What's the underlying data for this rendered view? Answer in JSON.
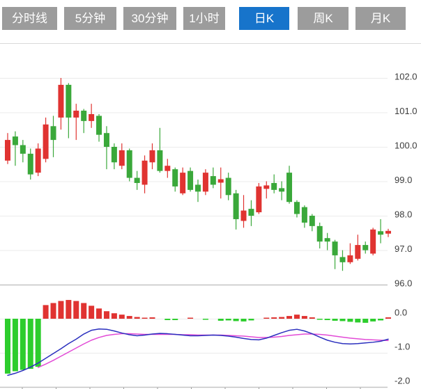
{
  "toolbar": {
    "tabs": [
      {
        "label": "分时线",
        "active": false
      },
      {
        "label": "5分钟",
        "active": false
      },
      {
        "label": "30分钟",
        "active": false
      },
      {
        "label": "1小时",
        "active": false
      },
      {
        "label": "日K",
        "active": true
      },
      {
        "label": "周K",
        "active": false
      },
      {
        "label": "月K",
        "active": false
      }
    ]
  },
  "colors": {
    "tab_inactive": "#9c9c9c",
    "tab_active": "#1774cb",
    "candle_up": "#e03331",
    "candle_down": "#3aa83a",
    "macd_up": "#e03331",
    "macd_down": "#2dcd2d",
    "dif_line": "#2a2fbe",
    "dea_line": "#e24ad6",
    "grid": "#ebebeb",
    "axis": "#c4c4c4",
    "tick": "#999999",
    "label": "#3c3c3c",
    "separator": "#d9d9d9"
  },
  "chart_data": {
    "type": "candlestick",
    "title": "",
    "legend": [],
    "panes": [
      {
        "name": "price",
        "y_tick_labels": [
          "102.0",
          "101.0",
          "100.0",
          "99.0",
          "98.0",
          "97.0",
          "96.0"
        ],
        "ylim": [
          95.9,
          102.1
        ],
        "grid": true
      },
      {
        "name": "macd",
        "y_tick_labels": [
          "0.0",
          "-1.0",
          "-2.0"
        ],
        "ylim": [
          -2.05,
          0.6
        ],
        "grid": true
      }
    ],
    "x_axis": {
      "tick_count": 11,
      "labels_visible": false
    },
    "candles_format": [
      "open",
      "high",
      "low",
      "close"
    ],
    "candles": [
      [
        99.6,
        100.4,
        99.5,
        100.2
      ],
      [
        100.3,
        100.45,
        99.45,
        100.05
      ],
      [
        100.05,
        100.2,
        99.55,
        99.8
      ],
      [
        99.8,
        99.95,
        99.05,
        99.2
      ],
      [
        99.25,
        100.1,
        99.15,
        99.95
      ],
      [
        99.65,
        100.85,
        99.55,
        100.65
      ],
      [
        100.6,
        100.9,
        99.7,
        100.2
      ],
      [
        100.85,
        102.0,
        100.5,
        101.8
      ],
      [
        101.8,
        101.85,
        100.25,
        100.85
      ],
      [
        100.85,
        101.25,
        100.2,
        101.05
      ],
      [
        101.05,
        101.1,
        100.4,
        100.75
      ],
      [
        100.75,
        101.25,
        100.55,
        100.95
      ],
      [
        100.9,
        100.95,
        100.15,
        100.35
      ],
      [
        100.4,
        100.6,
        99.35,
        100.0
      ],
      [
        100.0,
        100.1,
        99.35,
        99.55
      ],
      [
        99.45,
        100.1,
        99.35,
        99.9
      ],
      [
        99.9,
        99.95,
        99.0,
        99.1
      ],
      [
        99.1,
        99.3,
        98.75,
        98.95
      ],
      [
        98.9,
        99.75,
        98.65,
        99.6
      ],
      [
        99.55,
        100.1,
        99.35,
        99.9
      ],
      [
        99.9,
        100.55,
        99.25,
        99.3
      ],
      [
        99.3,
        99.65,
        99.1,
        99.45
      ],
      [
        99.35,
        99.4,
        98.7,
        98.85
      ],
      [
        98.65,
        99.4,
        98.6,
        99.25
      ],
      [
        99.3,
        99.4,
        98.7,
        98.75
      ],
      [
        98.9,
        99.05,
        98.4,
        98.7
      ],
      [
        98.7,
        99.35,
        98.6,
        99.25
      ],
      [
        99.15,
        99.4,
        98.8,
        98.9
      ],
      [
        98.96,
        99.4,
        98.5,
        99.06
      ],
      [
        99.1,
        99.25,
        98.45,
        98.6
      ],
      [
        98.65,
        98.75,
        97.6,
        97.9
      ],
      [
        97.85,
        98.6,
        97.65,
        98.15
      ],
      [
        98.2,
        98.45,
        97.7,
        98.0
      ],
      [
        98.1,
        98.95,
        98.05,
        98.85
      ],
      [
        98.78,
        99.0,
        98.5,
        98.88
      ],
      [
        98.95,
        99.2,
        98.65,
        98.75
      ],
      [
        98.8,
        99.0,
        98.45,
        98.7
      ],
      [
        99.25,
        99.45,
        98.35,
        98.4
      ],
      [
        98.4,
        98.45,
        97.95,
        98.05
      ],
      [
        98.25,
        98.3,
        97.65,
        97.8
      ],
      [
        98.0,
        98.05,
        97.55,
        97.7
      ],
      [
        97.7,
        97.8,
        97.05,
        97.25
      ],
      [
        97.35,
        97.5,
        97.0,
        97.25
      ],
      [
        97.25,
        97.3,
        96.45,
        96.85
      ],
      [
        96.8,
        97.0,
        96.4,
        96.65
      ],
      [
        96.65,
        97.2,
        96.6,
        96.85
      ],
      [
        96.75,
        97.45,
        96.7,
        97.15
      ],
      [
        97.15,
        97.25,
        96.9,
        97.0
      ],
      [
        96.9,
        97.65,
        96.85,
        97.6
      ],
      [
        97.55,
        97.9,
        97.2,
        97.45
      ],
      [
        97.48,
        97.62,
        97.38,
        97.56
      ]
    ],
    "macd": {
      "hist": [
        -1.61,
        -1.54,
        -1.5,
        -1.47,
        -1.41,
        0.4,
        0.46,
        0.52,
        0.55,
        0.52,
        0.46,
        0.38,
        0.3,
        0.22,
        0.16,
        0.12,
        0.08,
        0.05,
        0.02,
        0.04,
        0.0,
        -0.04,
        -0.04,
        0.0,
        0.03,
        0.0,
        -0.02,
        0.0,
        -0.06,
        -0.05,
        -0.07,
        -0.08,
        -0.05,
        0.0,
        0.02,
        0.04,
        0.05,
        0.08,
        0.12,
        0.08,
        0.04,
        -0.02,
        -0.04,
        -0.06,
        -0.07,
        -0.09,
        -0.11,
        -0.12,
        -0.08,
        -0.05,
        0.04
      ],
      "dif": [
        -1.66,
        -1.6,
        -1.52,
        -1.42,
        -1.3,
        -1.16,
        -1.02,
        -0.88,
        -0.73,
        -0.6,
        -0.45,
        -0.34,
        -0.3,
        -0.31,
        -0.36,
        -0.42,
        -0.47,
        -0.5,
        -0.48,
        -0.45,
        -0.43,
        -0.44,
        -0.46,
        -0.48,
        -0.5,
        -0.5,
        -0.49,
        -0.48,
        -0.49,
        -0.51,
        -0.54,
        -0.58,
        -0.61,
        -0.62,
        -0.57,
        -0.49,
        -0.41,
        -0.34,
        -0.31,
        -0.36,
        -0.44,
        -0.54,
        -0.63,
        -0.69,
        -0.73,
        -0.74,
        -0.73,
        -0.71,
        -0.69,
        -0.66,
        -0.6
      ],
      "dea": [
        null,
        null,
        null,
        null,
        -1.43,
        -1.33,
        -1.22,
        -1.1,
        -0.98,
        -0.86,
        -0.74,
        -0.63,
        -0.55,
        -0.49,
        -0.46,
        -0.44,
        -0.44,
        -0.45,
        -0.46,
        -0.46,
        -0.46,
        -0.46,
        -0.46,
        -0.47,
        -0.47,
        -0.48,
        -0.48,
        -0.48,
        -0.48,
        -0.49,
        -0.5,
        -0.51,
        -0.53,
        -0.55,
        -0.55,
        -0.54,
        -0.52,
        -0.49,
        -0.47,
        -0.45,
        -0.45,
        -0.46,
        -0.48,
        -0.51,
        -0.54,
        -0.57,
        -0.59,
        -0.61,
        -0.62,
        -0.63,
        -0.64
      ]
    }
  }
}
